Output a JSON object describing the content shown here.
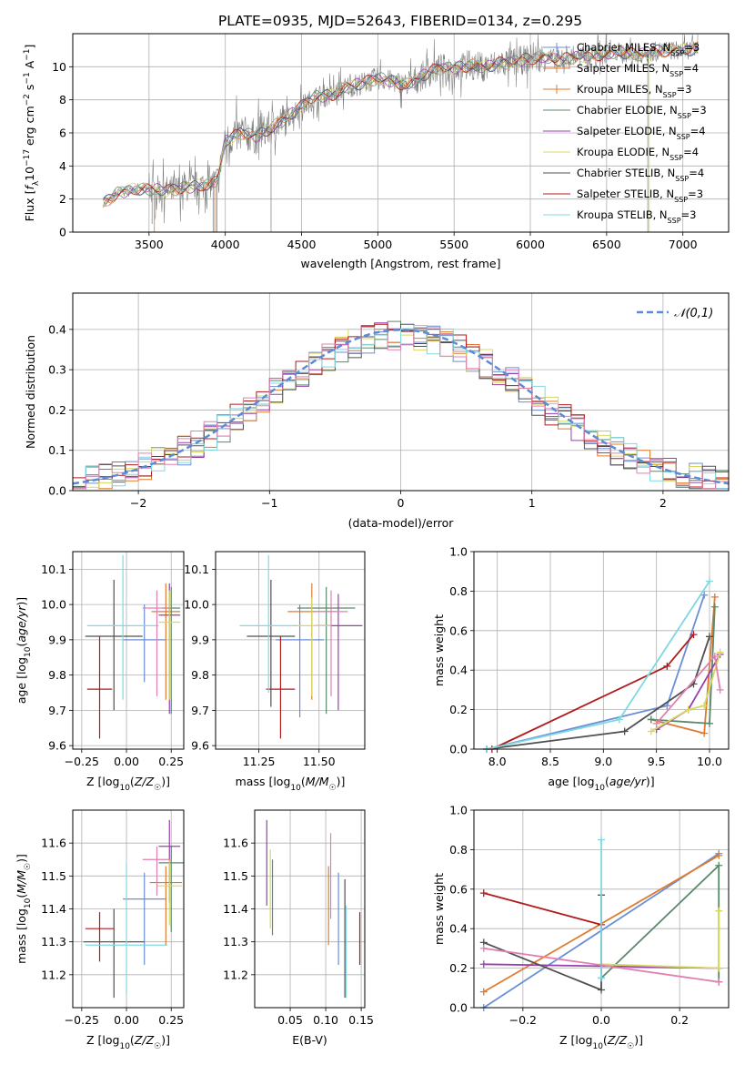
{
  "title": "PLATE=0935, MJD=52643, FIBERID=0134, z=0.295",
  "colors": [
    "#6a8fd8",
    "#e07b2e",
    "#5a8a6a",
    "#9a3fb0",
    "#d8d860",
    "#505050",
    "#b01c1c",
    "#80d8e0",
    "#e080b0"
  ],
  "legend_models": [
    {
      "label": "Chabrier MILES, N_SSP=3",
      "color": "#6a8fd8"
    },
    {
      "label": "Salpeter MILES, N_SSP=4",
      "color": "#e07b2e"
    },
    {
      "label": "Kroupa MILES, N_SSP=3",
      "color": "#e07b2e"
    },
    {
      "label": "Chabrier ELODIE, N_SSP=3",
      "color": "#5a8a6a"
    },
    {
      "label": "Salpeter ELODIE, N_SSP=4",
      "color": "#9a3fb0"
    },
    {
      "label": "Kroupa ELODIE, N_SSP=4",
      "color": "#d8d860"
    },
    {
      "label": "Chabrier STELIB, N_SSP=4",
      "color": "#505050"
    },
    {
      "label": "Salpeter STELIB, N_SSP=3",
      "color": "#b01c1c"
    },
    {
      "label": "Kroupa STELIB, N_SSP=3",
      "color": "#80d8e0"
    }
  ],
  "chart_data": [
    {
      "type": "line",
      "id": "spectrum",
      "title": "PLATE=0935, MJD=52643, FIBERID=0134, z=0.295",
      "xlabel": "wavelength [Angstrom, rest frame]",
      "ylabel": "Flux [f_λ 10^-17 erg cm^-2 s^-1 A^-1]",
      "xlim": [
        3000,
        7300
      ],
      "ylim": [
        0,
        12
      ],
      "xticks": [
        3500,
        4000,
        4500,
        5000,
        5500,
        6000,
        6500,
        7000
      ],
      "yticks": [
        0,
        2,
        4,
        6,
        8,
        10
      ],
      "continuum": {
        "x": [
          3200,
          3300,
          3400,
          3500,
          3600,
          3700,
          3800,
          3900,
          3950,
          4000,
          4100,
          4200,
          4300,
          4400,
          4500,
          4600,
          4700,
          4800,
          4900,
          5000,
          5100,
          5200,
          5300,
          5400,
          5500,
          5600,
          5700,
          5800,
          5900,
          6000,
          6100,
          6200,
          6300,
          6400,
          6500,
          6600,
          6700,
          6800,
          6900,
          7000,
          7100
        ],
        "y": [
          1.7,
          2.4,
          2.6,
          2.6,
          2.5,
          2.6,
          2.8,
          2.9,
          3.2,
          5.5,
          6.0,
          5.8,
          6.3,
          6.9,
          7.6,
          8.2,
          8.3,
          8.8,
          9.0,
          9.3,
          9.1,
          8.9,
          9.5,
          9.9,
          9.9,
          10.1,
          10.0,
          10.2,
          10.3,
          10.5,
          10.6,
          10.4,
          10.6,
          10.7,
          10.8,
          10.9,
          10.7,
          10.9,
          11.0,
          11.0,
          11.1
        ]
      }
    },
    {
      "type": "histogram",
      "id": "residuals",
      "xlabel": "(data-model)/error",
      "ylabel": "Normed distribution",
      "xlim": [
        -2.5,
        2.5
      ],
      "ylim": [
        0,
        0.49
      ],
      "xticks": [
        -2,
        -1,
        0,
        1,
        2
      ],
      "yticks": [
        0.0,
        0.1,
        0.2,
        0.3,
        0.4
      ],
      "reference_curve": {
        "name": "𝒩(0,1)",
        "mean": 0,
        "sigma": 1,
        "color": "#5b8bd8"
      }
    },
    {
      "type": "errorbar",
      "id": "age_vs_Z",
      "xlabel": "Z [log10(Z/Z☉)]",
      "ylabel": "age [log10(age/yr)]",
      "xlim": [
        -0.3,
        0.32
      ],
      "ylim": [
        9.59,
        10.15
      ],
      "xticks": [
        -0.25,
        0.0,
        0.25
      ],
      "xtick_labels": [
        "−0.25",
        "0.00",
        "0.25"
      ],
      "yticks": [
        9.6,
        9.7,
        9.8,
        9.9,
        10.0,
        10.1
      ],
      "points": [
        {
          "x": 0.1,
          "xerr": 0.12,
          "y": 9.9,
          "yerr": [
            0.12,
            0.1
          ],
          "color": "#6a8fd8"
        },
        {
          "x": 0.22,
          "xerr": 0.08,
          "y": 9.98,
          "yerr": [
            0.25,
            0.08
          ],
          "color": "#e07b2e"
        },
        {
          "x": 0.25,
          "xerr": 0.05,
          "y": 9.99,
          "yerr": [
            0.3,
            0.06
          ],
          "color": "#5a8a6a"
        },
        {
          "x": 0.24,
          "xerr": 0.06,
          "y": 9.97,
          "yerr": [
            0.28,
            0.09
          ],
          "color": "#9a3fb0"
        },
        {
          "x": 0.24,
          "xerr": 0.06,
          "y": 9.95,
          "yerr": [
            0.22,
            0.09
          ],
          "color": "#d8d860"
        },
        {
          "x": -0.07,
          "xerr": 0.16,
          "y": 9.91,
          "yerr": [
            0.21,
            0.16
          ],
          "color": "#505050"
        },
        {
          "x": -0.15,
          "xerr": 0.07,
          "y": 9.76,
          "yerr": [
            0.14,
            0.15
          ],
          "color": "#b01c1c"
        },
        {
          "x": -0.02,
          "xerr": 0.2,
          "y": 9.94,
          "yerr": [
            0.21,
            0.2
          ],
          "color": "#80d8e0"
        },
        {
          "x": 0.17,
          "xerr": 0.08,
          "y": 9.99,
          "yerr": [
            0.25,
            0.05
          ],
          "color": "#e080b0"
        }
      ]
    },
    {
      "type": "errorbar",
      "id": "age_vs_mass",
      "xlabel": "mass [log10(M/M☉)]",
      "xlim": [
        11.07,
        11.69
      ],
      "ylim": [
        9.59,
        10.15
      ],
      "xticks": [
        11.25,
        11.5
      ],
      "xtick_labels": [
        "11.25",
        "11.50"
      ],
      "yticks": [
        9.6,
        9.7,
        9.8,
        9.9,
        10.0,
        10.1
      ],
      "points": [
        {
          "x": 11.42,
          "xerr": 0.1,
          "y": 9.9,
          "yerr": [
            0.22,
            0.1
          ],
          "color": "#6a8fd8"
        },
        {
          "x": 11.47,
          "xerr": 0.1,
          "y": 9.98,
          "yerr": [
            0.25,
            0.08
          ],
          "color": "#e07b2e"
        },
        {
          "x": 11.53,
          "xerr": 0.12,
          "y": 9.99,
          "yerr": [
            0.3,
            0.06
          ],
          "color": "#5a8a6a"
        },
        {
          "x": 11.58,
          "xerr": 0.1,
          "y": 9.94,
          "yerr": [
            0.24,
            0.09
          ],
          "color": "#9a3fb0"
        },
        {
          "x": 11.47,
          "xerr": 0.08,
          "y": 9.94,
          "yerr": [
            0.2,
            0.08
          ],
          "color": "#d8d860"
        },
        {
          "x": 11.3,
          "xerr": 0.1,
          "y": 9.91,
          "yerr": [
            0.2,
            0.16
          ],
          "color": "#505050"
        },
        {
          "x": 11.34,
          "xerr": 0.06,
          "y": 9.76,
          "yerr": [
            0.14,
            0.15
          ],
          "color": "#b01c1c"
        },
        {
          "x": 11.29,
          "xerr": 0.12,
          "y": 9.94,
          "yerr": [
            0.19,
            0.2
          ],
          "color": "#80d8e0"
        },
        {
          "x": 11.55,
          "xerr": 0.07,
          "y": 9.98,
          "yerr": [
            0.24,
            0.06
          ],
          "color": "#e080b0"
        }
      ]
    },
    {
      "type": "line",
      "id": "weight_vs_age",
      "xlabel": "age [log10(age/yr)]",
      "ylabel": "mass weight",
      "xlim": [
        7.78,
        10.18
      ],
      "ylim": [
        0,
        1
      ],
      "xticks": [
        8.0,
        8.5,
        9.0,
        9.5,
        10.0
      ],
      "yticks": [
        0.0,
        0.2,
        0.4,
        0.6,
        0.8,
        1.0
      ],
      "series": [
        {
          "color": "#6a8fd8",
          "x": [
            7.9,
            9.6,
            9.95
          ],
          "y": [
            0.0,
            0.22,
            0.78
          ]
        },
        {
          "color": "#e07b2e",
          "x": [
            9.45,
            9.95,
            10.05
          ],
          "y": [
            0.15,
            0.08,
            0.77
          ]
        },
        {
          "color": "#5a8a6a",
          "x": [
            9.45,
            10.0,
            10.05
          ],
          "y": [
            0.15,
            0.13,
            0.72
          ]
        },
        {
          "color": "#9a3fb0",
          "x": [
            9.5,
            9.8,
            10.1
          ],
          "y": [
            0.1,
            0.2,
            0.48
          ]
        },
        {
          "color": "#d8d860",
          "x": [
            9.45,
            9.8,
            9.95,
            10.1
          ],
          "y": [
            0.09,
            0.2,
            0.22,
            0.49
          ]
        },
        {
          "color": "#505050",
          "x": [
            7.9,
            9.2,
            9.85,
            10.0
          ],
          "y": [
            0.0,
            0.09,
            0.33,
            0.57
          ]
        },
        {
          "color": "#b01c1c",
          "x": [
            7.95,
            9.6,
            9.85
          ],
          "y": [
            0.0,
            0.42,
            0.58
          ]
        },
        {
          "color": "#80d8e0",
          "x": [
            7.9,
            9.15,
            10.0
          ],
          "y": [
            0.0,
            0.15,
            0.85
          ]
        },
        {
          "color": "#e080b0",
          "x": [
            9.5,
            10.05,
            10.1
          ],
          "y": [
            0.13,
            0.47,
            0.3
          ]
        }
      ]
    },
    {
      "type": "errorbar",
      "id": "mass_vs_Z",
      "xlabel": "Z [log10(Z/Z☉)]",
      "ylabel": "mass [log10(M/M☉)]",
      "xlim": [
        -0.3,
        0.32
      ],
      "ylim": [
        11.1,
        11.7
      ],
      "xticks": [
        -0.25,
        0.0,
        0.25
      ],
      "xtick_labels": [
        "−0.25",
        "0.00",
        "0.25"
      ],
      "yticks": [
        11.2,
        11.3,
        11.4,
        11.5,
        11.6
      ],
      "points": [
        {
          "x": 0.1,
          "xerr": 0.12,
          "y": 11.43,
          "yerr": [
            0.2,
            0.08
          ],
          "color": "#6a8fd8"
        },
        {
          "x": 0.22,
          "xerr": 0.09,
          "y": 11.48,
          "yerr": [
            0.19,
            0.05
          ],
          "color": "#e07b2e"
        },
        {
          "x": 0.25,
          "xerr": 0.07,
          "y": 11.54,
          "yerr": [
            0.21,
            0.05
          ],
          "color": "#5a8a6a"
        },
        {
          "x": 0.24,
          "xerr": 0.06,
          "y": 11.59,
          "yerr": [
            0.17,
            0.08
          ],
          "color": "#9a3fb0"
        },
        {
          "x": 0.24,
          "xerr": 0.07,
          "y": 11.47,
          "yerr": [
            0.12,
            0.08
          ],
          "color": "#d8d860"
        },
        {
          "x": -0.07,
          "xerr": 0.17,
          "y": 11.3,
          "yerr": [
            0.17,
            0.1
          ],
          "color": "#505050"
        },
        {
          "x": -0.15,
          "xerr": 0.08,
          "y": 11.34,
          "yerr": [
            0.1,
            0.05
          ],
          "color": "#b01c1c"
        },
        {
          "x": 0.0,
          "xerr": 0.23,
          "y": 11.29,
          "yerr": [
            0.15,
            0.25
          ],
          "color": "#80d8e0"
        },
        {
          "x": 0.17,
          "xerr": 0.08,
          "y": 11.55,
          "yerr": [
            0.11,
            0.04
          ],
          "color": "#e080b0"
        }
      ]
    },
    {
      "type": "errorbar",
      "id": "mass_vs_EBV",
      "xlabel": "E(B-V)",
      "xlim": [
        0.0,
        0.155
      ],
      "ylim": [
        11.1,
        11.7
      ],
      "xticks": [
        0.05,
        0.1,
        0.15
      ],
      "xtick_labels": [
        "0.05",
        "0.10",
        "0.15"
      ],
      "yticks": [
        11.2,
        11.3,
        11.4,
        11.5,
        11.6
      ],
      "points": [
        {
          "x": 0.118,
          "y": 11.37,
          "yerr": [
            0.14,
            0.14
          ],
          "color": "#6a8fd8"
        },
        {
          "x": 0.104,
          "y": 11.41,
          "yerr": [
            0.12,
            0.12
          ],
          "color": "#e07b2e"
        },
        {
          "x": 0.025,
          "y": 11.44,
          "yerr": [
            0.12,
            0.11
          ],
          "color": "#5a8a6a"
        },
        {
          "x": 0.017,
          "y": 11.54,
          "yerr": [
            0.13,
            0.13
          ],
          "color": "#9a3fb0"
        },
        {
          "x": 0.022,
          "y": 11.46,
          "yerr": [
            0.12,
            0.12
          ],
          "color": "#d8d860"
        },
        {
          "x": 0.127,
          "y": 11.31,
          "yerr": [
            0.18,
            0.18
          ],
          "color": "#505050"
        },
        {
          "x": 0.148,
          "y": 11.31,
          "yerr": [
            0.08,
            0.08
          ],
          "color": "#b01c1c"
        },
        {
          "x": 0.129,
          "y": 11.27,
          "yerr": [
            0.14,
            0.14
          ],
          "color": "#80d8e0"
        },
        {
          "x": 0.107,
          "y": 11.5,
          "yerr": [
            0.13,
            0.13
          ],
          "color": "#e080b0"
        }
      ]
    },
    {
      "type": "line",
      "id": "weight_vs_Z",
      "xlabel": "Z [log10(Z/Z☉)]",
      "ylabel": "mass weight",
      "xlim": [
        -0.325,
        0.325
      ],
      "ylim": [
        0,
        1
      ],
      "xticks": [
        -0.2,
        0.0,
        0.2
      ],
      "xtick_labels": [
        "−0.2",
        "0.0",
        "0.2"
      ],
      "yticks": [
        0.0,
        0.2,
        0.4,
        0.6,
        0.8,
        1.0
      ],
      "series": [
        {
          "color": "#6a8fd8",
          "x": [
            -0.3,
            0.3
          ],
          "y": [
            0.0,
            0.78
          ]
        },
        {
          "color": "#e07b2e",
          "x": [
            -0.3,
            0.3
          ],
          "y": [
            0.08,
            0.77
          ]
        },
        {
          "color": "#5a8a6a",
          "x": [
            0.0,
            0.3,
            0.3
          ],
          "y": [
            0.15,
            0.72,
            0.13
          ]
        },
        {
          "color": "#9a3fb0",
          "x": [
            -0.3,
            0.3
          ],
          "y": [
            0.22,
            0.2
          ]
        },
        {
          "color": "#d8d860",
          "x": [
            0.0,
            0.3,
            0.3
          ],
          "y": [
            0.22,
            0.2,
            0.49
          ]
        },
        {
          "color": "#505050",
          "x": [
            -0.3,
            0.0,
            0.0
          ],
          "y": [
            0.33,
            0.09,
            0.57
          ]
        },
        {
          "color": "#b01c1c",
          "x": [
            -0.3,
            0.0
          ],
          "y": [
            0.58,
            0.42
          ]
        },
        {
          "color": "#80d8e0",
          "x": [
            0.0,
            0.0
          ],
          "y": [
            0.85,
            0.15
          ]
        },
        {
          "color": "#e080b0",
          "x": [
            -0.3,
            0.3
          ],
          "y": [
            0.3,
            0.13
          ]
        }
      ]
    }
  ]
}
